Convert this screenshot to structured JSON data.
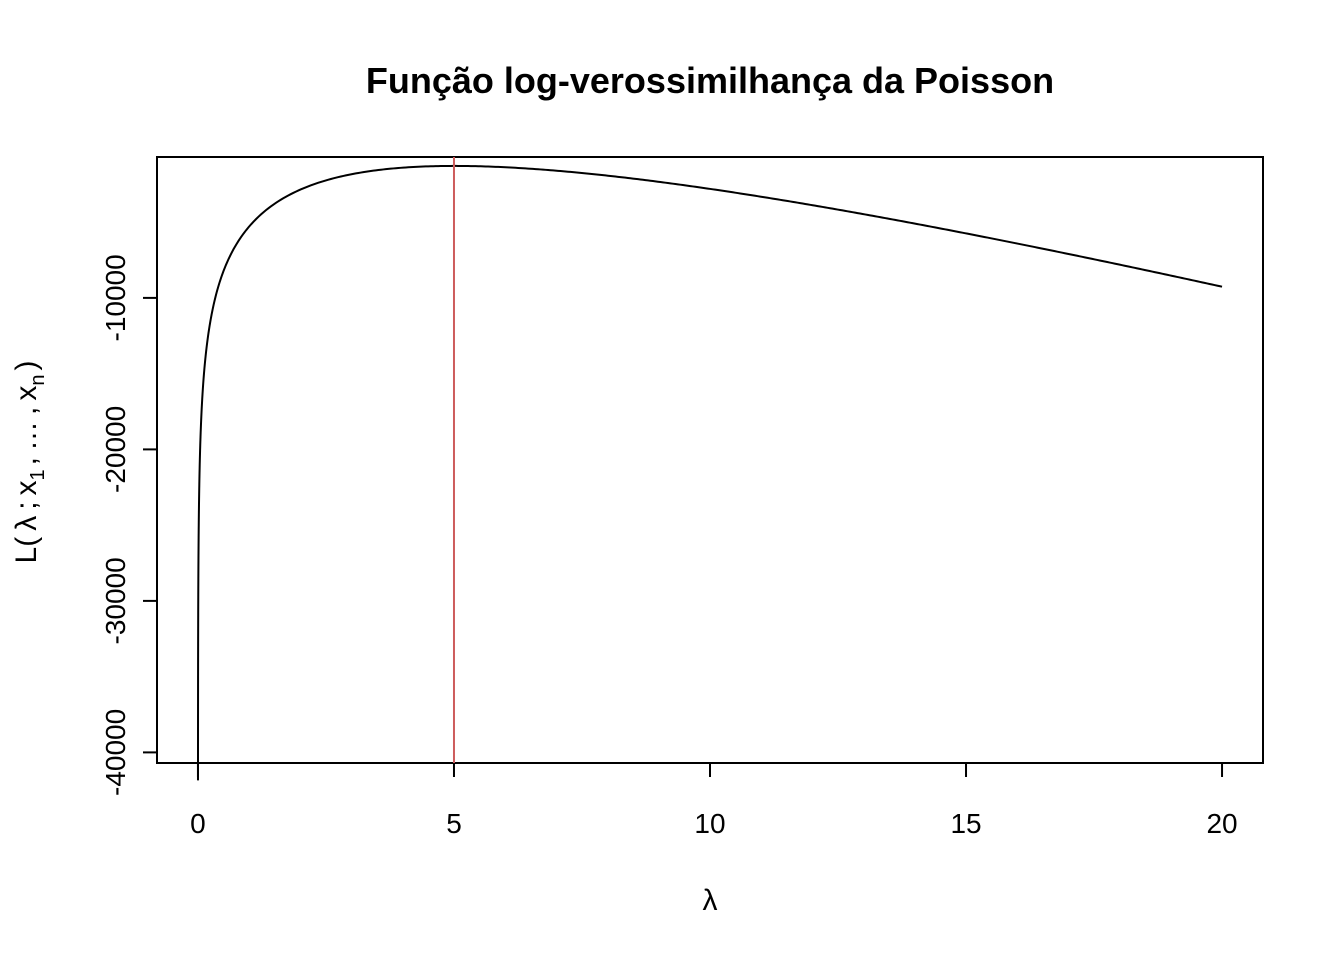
{
  "chart_data": {
    "type": "line",
    "title": "Função log-verossimilhança da Poisson",
    "xlabel": "λ",
    "ylabel": {
      "prefix": "L(",
      "lambda": "λ",
      "semi": ";",
      "x1": "x",
      "x1_sub": "1",
      "sep1": ",",
      "dots": "…",
      "sep2": ",",
      "xn": "x",
      "xn_sub": "n",
      "close": ")"
    },
    "xlim": [
      -0.8,
      20.8
    ],
    "ylim": [
      -40700,
      -700
    ],
    "x_ticks": [
      0,
      5,
      10,
      15,
      20
    ],
    "y_ticks": [
      -40000,
      -30000,
      -20000,
      -10000
    ],
    "x_tick_labels": [
      "0",
      "5",
      "10",
      "15",
      "20"
    ],
    "y_tick_labels": [
      "-40000",
      "-30000",
      "-20000",
      "-10000"
    ],
    "grid": false,
    "series": [
      {
        "color": "#000000",
        "curve": {
          "form": "S*log(lambda) - n*lambda + c",
          "S": 4940,
          "n": 988,
          "c": -4300,
          "lambda_range": [
            0.0005,
            20
          ]
        }
      }
    ],
    "vline": {
      "x": 5,
      "color": "#cd5c5c"
    }
  }
}
